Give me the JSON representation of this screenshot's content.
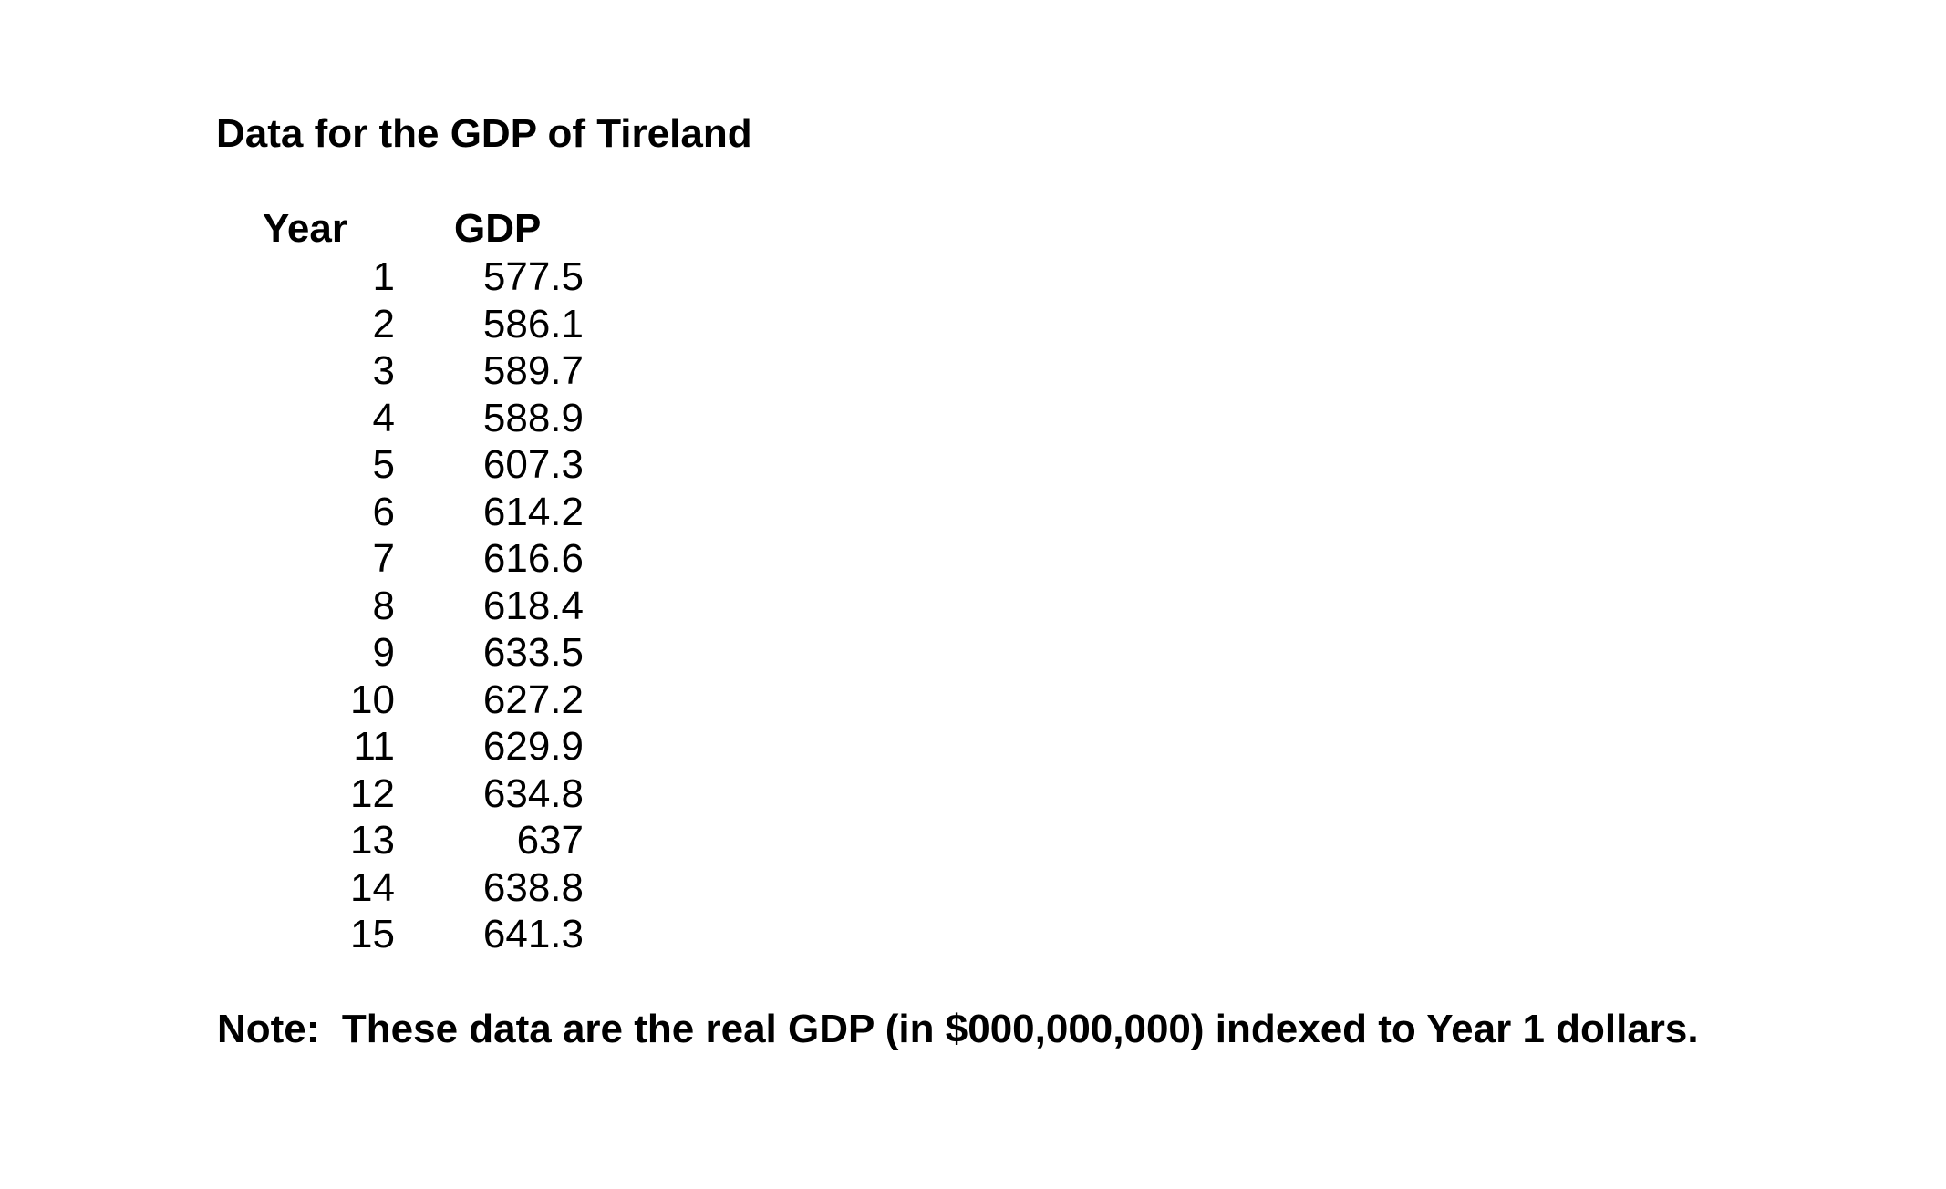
{
  "page": {
    "background_color": "#ffffff",
    "text_color": "#000000"
  },
  "document": {
    "title": "Data for the GDP of Tireland",
    "table": {
      "headers": {
        "year": "Year",
        "gdp": "GDP"
      },
      "rows": [
        {
          "year": "1",
          "gdp": "577.5"
        },
        {
          "year": "2",
          "gdp": "586.1"
        },
        {
          "year": "3",
          "gdp": "589.7"
        },
        {
          "year": "4",
          "gdp": "588.9"
        },
        {
          "year": "5",
          "gdp": "607.3"
        },
        {
          "year": "6",
          "gdp": "614.2"
        },
        {
          "year": "7",
          "gdp": "616.6"
        },
        {
          "year": "8",
          "gdp": "618.4"
        },
        {
          "year": "9",
          "gdp": "633.5"
        },
        {
          "year": "10",
          "gdp": "627.2"
        },
        {
          "year": "11",
          "gdp": "629.9"
        },
        {
          "year": "12",
          "gdp": "634.8"
        },
        {
          "year": "13",
          "gdp": "637"
        },
        {
          "year": "14",
          "gdp": "638.8"
        },
        {
          "year": "15",
          "gdp": "641.3"
        }
      ]
    },
    "note": "Note:  These data are the real GDP (in $000,000,000) indexed to Year 1 dollars."
  },
  "chart_data": {
    "type": "table",
    "title": "Data for the GDP of Tireland",
    "columns": [
      "Year",
      "GDP"
    ],
    "years": [
      1,
      2,
      3,
      4,
      5,
      6,
      7,
      8,
      9,
      10,
      11,
      12,
      13,
      14,
      15
    ],
    "gdp_values": [
      577.5,
      586.1,
      589.7,
      588.9,
      607.3,
      614.2,
      616.6,
      618.4,
      633.5,
      627.2,
      629.9,
      634.8,
      637,
      638.8,
      641.3
    ],
    "note": "Note:  These data are the real GDP (in $000,000,000) indexed to Year 1 dollars."
  }
}
